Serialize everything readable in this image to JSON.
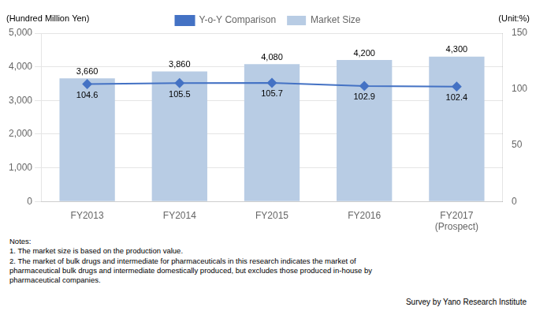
{
  "chart_data": {
    "type": "bar",
    "categories": [
      "FY2013",
      "FY2014",
      "FY2015",
      "FY2016",
      "FY2017\n(Prospect)"
    ],
    "series": [
      {
        "name": "Market Size",
        "type": "bar",
        "color": "#b8cce4",
        "values": [
          3660,
          3860,
          4080,
          4200,
          4300
        ],
        "value_labels": [
          "3,660",
          "3,860",
          "4,080",
          "4,200",
          "4,300"
        ]
      },
      {
        "name": "Y-o-Y Comparison",
        "type": "line",
        "color": "#4472c4",
        "marker": "diamond",
        "axis": "y2",
        "values": [
          104.6,
          105.5,
          105.7,
          102.9,
          102.4
        ]
      }
    ],
    "ylabel": "(Hundred Million Yen)",
    "y2label": "(Unit:%)",
    "ylim": [
      0,
      5000
    ],
    "yticks": [
      0,
      {
        "value": 1000,
        "label": "1,000"
      },
      {
        "value": 2000,
        "label": "2,000"
      },
      {
        "value": 3000,
        "label": "3,000"
      },
      {
        "value": 4000,
        "label": "4,000"
      },
      {
        "value": 5000,
        "label": "5,000"
      }
    ],
    "y2lim": [
      0,
      150
    ],
    "y2ticks": [
      0,
      50,
      100,
      150
    ],
    "grid": true,
    "legend": "top",
    "data_labels": true,
    "notes": [
      "Notes:",
      "1. The market size is based on the production value.",
      "2. The market of bulk drugs and intermediate for pharmaceuticals in this research indicates the market of",
      "pharmaceutical bulk drugs and intermediate domestically produced, but excludes those produced in-house by",
      "pharmaceutical companies."
    ],
    "source": "Survey by Yano Research Institute"
  }
}
